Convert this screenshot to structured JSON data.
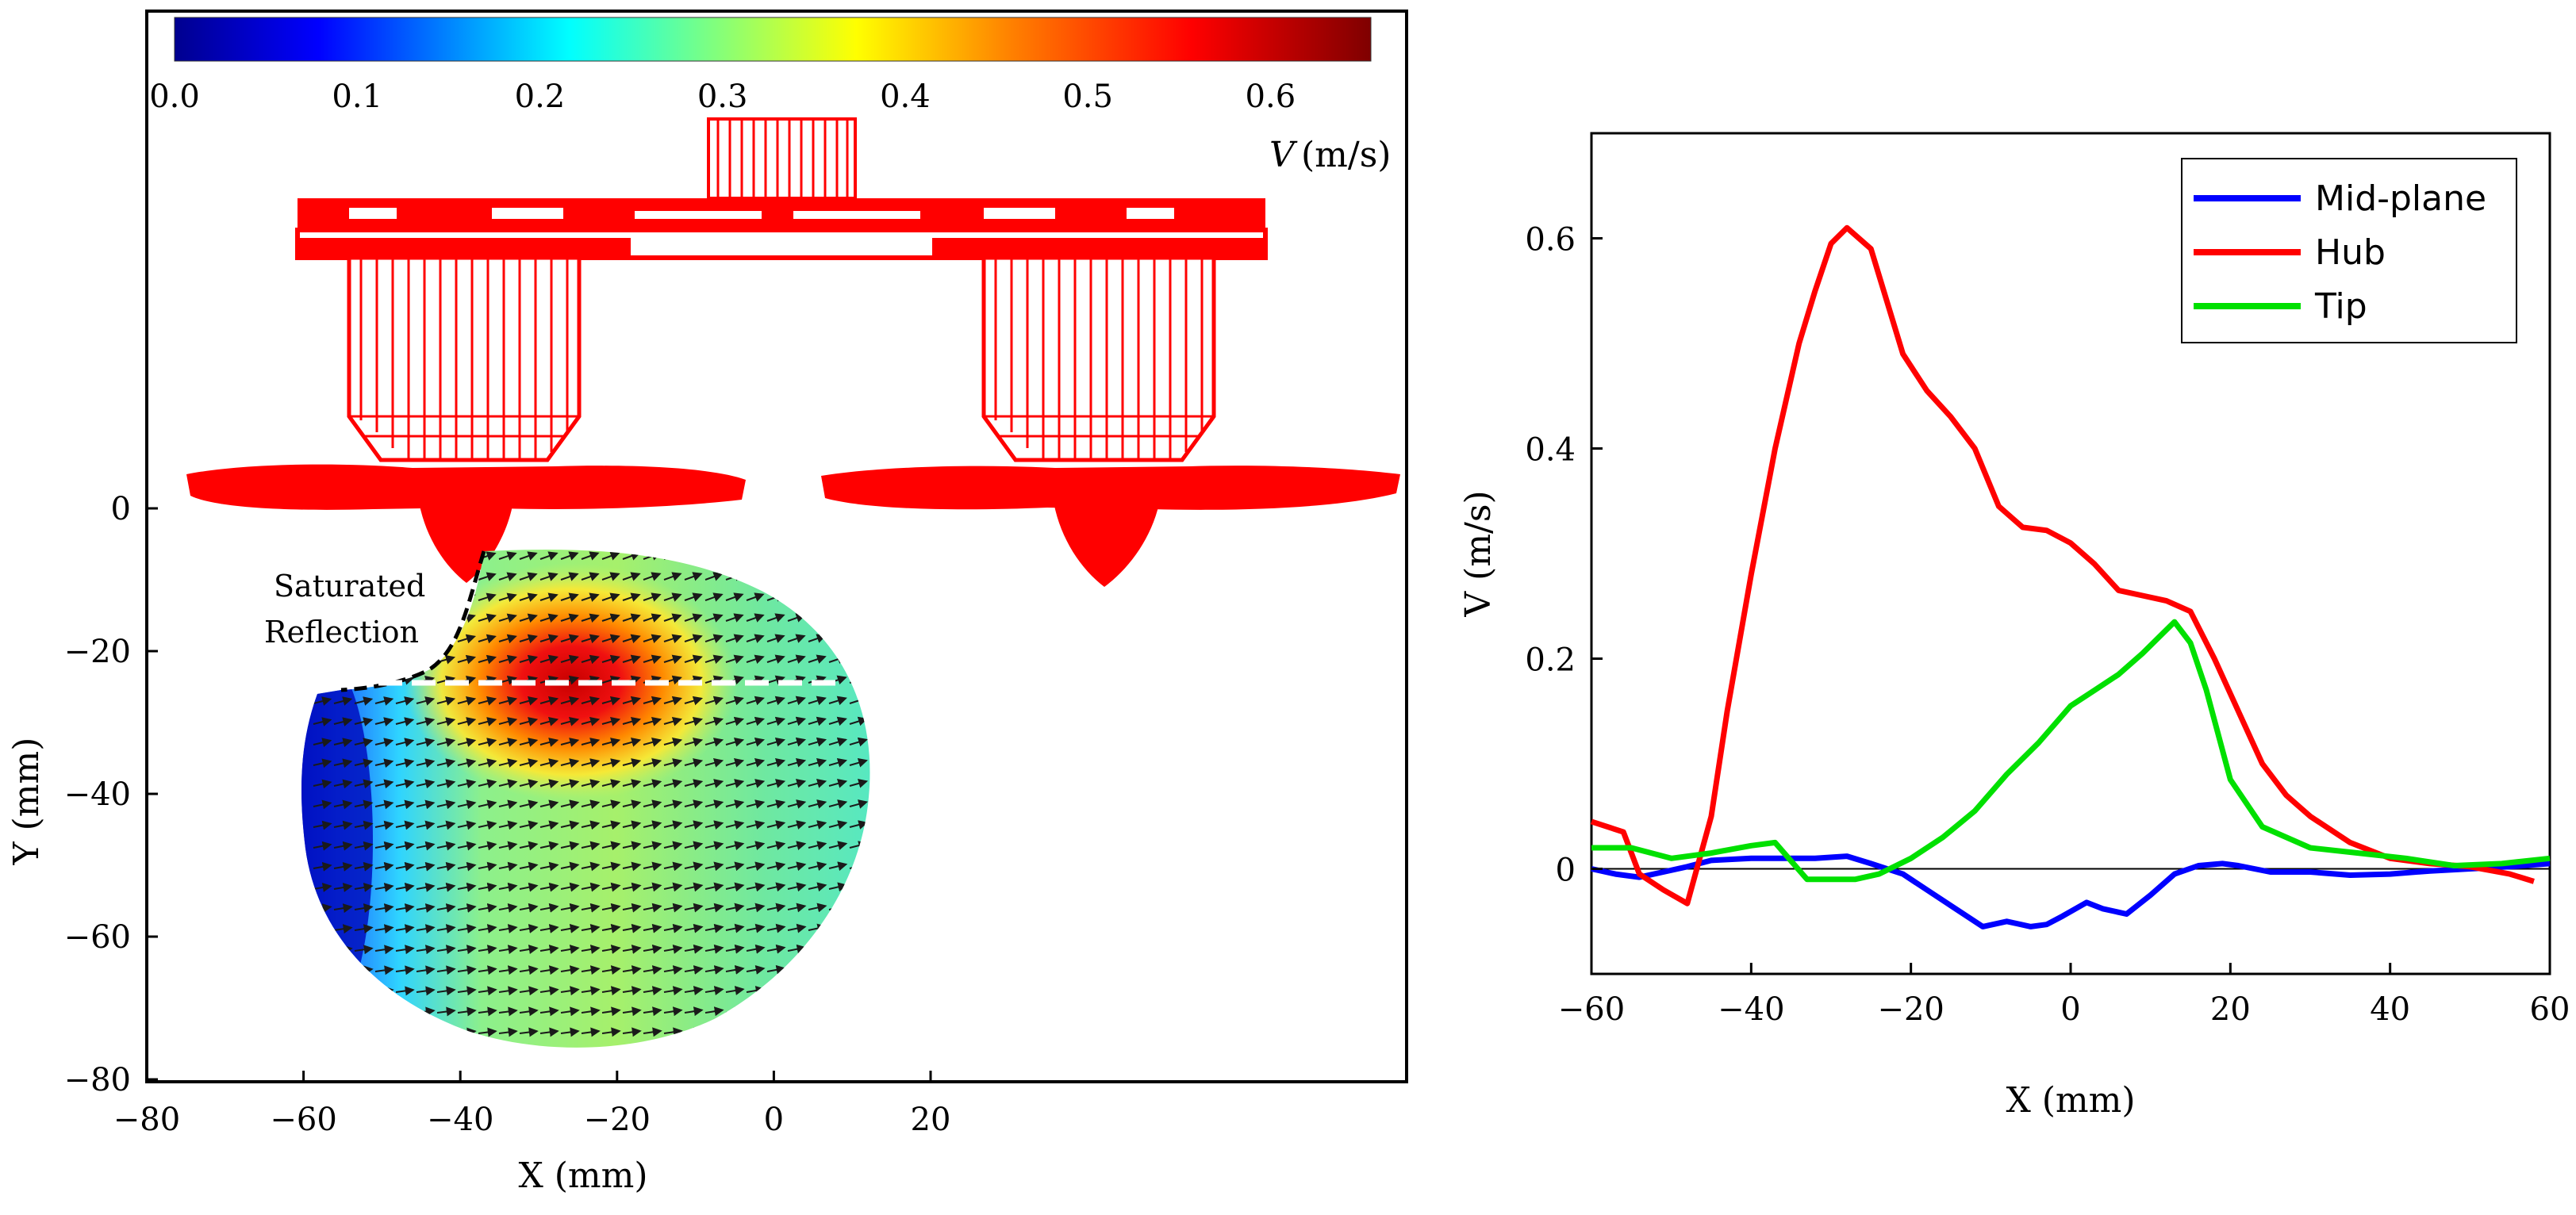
{
  "left_panel": {
    "colorbar": {
      "ticks": [
        "0.0",
        "0.1",
        "0.2",
        "0.3",
        "0.4",
        "0.5",
        "0.6"
      ],
      "tick_values": [
        0,
        0.1,
        0.2,
        0.3,
        0.4,
        0.5,
        0.6
      ],
      "range": [
        0,
        0.655
      ],
      "label": "V",
      "unit": "(m/s)",
      "colormap": [
        "#00008f",
        "#0000ff",
        "#00ffff",
        "#7fff7f",
        "#ffff00",
        "#ff7f00",
        "#ff0000",
        "#7f0000"
      ]
    },
    "x_ticks": [
      "−80",
      "−60",
      "−40",
      "−20",
      "0",
      "20"
    ],
    "x_values": [
      -80,
      -60,
      -40,
      -20,
      0,
      20
    ],
    "y_ticks": [
      "0",
      "−20",
      "−40",
      "−60",
      "−80"
    ],
    "y_values": [
      0,
      -20,
      -40,
      -60,
      -80
    ],
    "xlabel": "X (mm)",
    "ylabel": "Y (mm)",
    "annotation": [
      "Saturated",
      "Reflection"
    ],
    "propeller_color": "#ff0000",
    "arrow_color": "#1a1a1a"
  },
  "chart_data": {
    "type": "line",
    "xlabel": "X (mm)",
    "ylabel": "V (m/s)",
    "xlim": [
      -60,
      60
    ],
    "ylim": [
      -0.1,
      0.7
    ],
    "x_ticks": [
      "−60",
      "−40",
      "−20",
      "0",
      "20",
      "40",
      "60"
    ],
    "x_tick_values": [
      -60,
      -40,
      -20,
      0,
      20,
      40,
      60
    ],
    "y_ticks": [
      "0",
      "0.2",
      "0.4",
      "0.6"
    ],
    "y_tick_values": [
      0,
      0.2,
      0.4,
      0.6
    ],
    "legend_position": "top-right",
    "series": [
      {
        "name": "Mid-plane",
        "color": "#0000ff",
        "x": [
          -60,
          -57,
          -54,
          -51,
          -48,
          -45,
          -40,
          -36,
          -32,
          -28,
          -25,
          -21,
          -18,
          -15,
          -11,
          -8,
          -5,
          -3,
          -1,
          2,
          4,
          7,
          10,
          13,
          16,
          19,
          21,
          25,
          30,
          35,
          40,
          45,
          50,
          55,
          60
        ],
        "y": [
          0.0,
          -0.005,
          -0.008,
          -0.003,
          0.002,
          0.008,
          0.01,
          0.01,
          0.01,
          0.012,
          0.005,
          -0.005,
          -0.02,
          -0.035,
          -0.055,
          -0.05,
          -0.055,
          -0.053,
          -0.045,
          -0.032,
          -0.038,
          -0.043,
          -0.025,
          -0.005,
          0.003,
          0.005,
          0.003,
          -0.003,
          -0.003,
          -0.006,
          -0.005,
          -0.002,
          0.0,
          0.002,
          0.005
        ]
      },
      {
        "name": "Hub",
        "color": "#ff0000",
        "x": [
          -60,
          -56,
          -54,
          -51,
          -48,
          -45,
          -43,
          -40,
          -37,
          -34,
          -32,
          -30,
          -28,
          -25,
          -21,
          -18,
          -15,
          -12,
          -9,
          -6,
          -3,
          0,
          3,
          6,
          9,
          12,
          15,
          18,
          21,
          24,
          27,
          30,
          35,
          40,
          45,
          50,
          55,
          58
        ],
        "y": [
          0.045,
          0.035,
          -0.005,
          -0.02,
          -0.033,
          0.05,
          0.15,
          0.28,
          0.4,
          0.5,
          0.55,
          0.595,
          0.61,
          0.59,
          0.49,
          0.455,
          0.43,
          0.4,
          0.345,
          0.325,
          0.322,
          0.31,
          0.29,
          0.265,
          0.26,
          0.255,
          0.245,
          0.2,
          0.15,
          0.1,
          0.07,
          0.05,
          0.025,
          0.01,
          0.005,
          0.002,
          -0.005,
          -0.012
        ]
      },
      {
        "name": "Tip",
        "color": "#00e000",
        "x": [
          -60,
          -55,
          -50,
          -45,
          -40,
          -37,
          -33,
          -30,
          -27,
          -24,
          -20,
          -16,
          -12,
          -8,
          -4,
          0,
          3,
          6,
          9,
          11,
          13,
          15,
          17,
          20,
          24,
          30,
          36,
          42,
          48,
          54,
          60
        ],
        "y": [
          0.02,
          0.02,
          0.01,
          0.015,
          0.022,
          0.025,
          -0.01,
          -0.01,
          -0.01,
          -0.005,
          0.01,
          0.03,
          0.055,
          0.09,
          0.12,
          0.155,
          0.17,
          0.185,
          0.205,
          0.22,
          0.235,
          0.215,
          0.17,
          0.085,
          0.04,
          0.02,
          0.015,
          0.01,
          0.003,
          0.005,
          0.01
        ]
      }
    ]
  }
}
